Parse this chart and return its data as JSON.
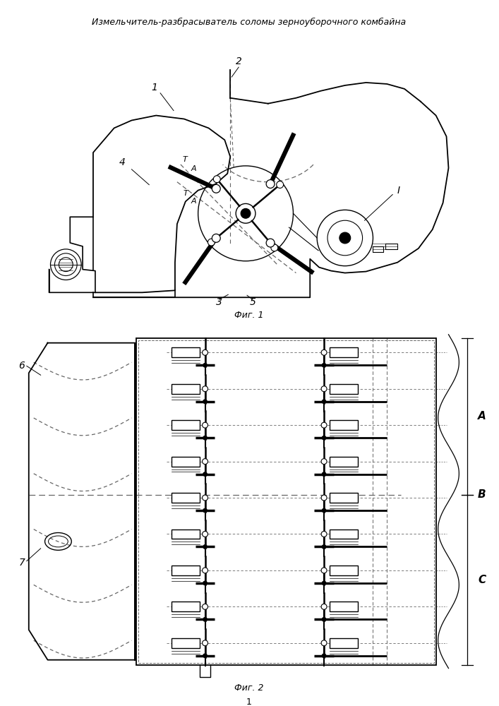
{
  "title": "Измельчитель-разбрасыватель соломы зерноуборочного комбайна",
  "fig1_label": "Фиг. 1",
  "fig2_label": "Фиг. 2",
  "page_num": "1",
  "bg_color": "#ffffff",
  "lc": "#000000",
  "dc": "#666666",
  "title_fs": 9,
  "label_fs": 9,
  "num_fs": 10
}
